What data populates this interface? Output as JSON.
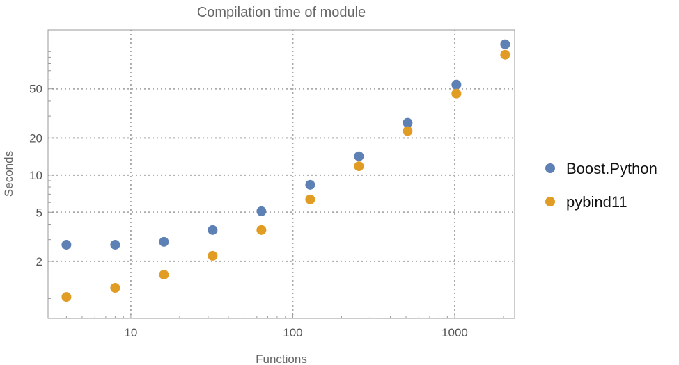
{
  "chart_data": {
    "type": "scatter",
    "title": "Compilation time of module",
    "xlabel": "Functions",
    "ylabel": "Seconds",
    "x_scale": "log",
    "y_scale": "log",
    "xlim": [
      3.08,
      2344
    ],
    "ylim": [
      0.69,
      150
    ],
    "grid": true,
    "legend_position": "right",
    "x_ticks": [
      10,
      100,
      1000
    ],
    "x_tick_labels": [
      "10",
      "100",
      "1000"
    ],
    "y_ticks": [
      2,
      5,
      10,
      20,
      50
    ],
    "y_tick_labels": [
      "2",
      "5",
      "10",
      "20",
      "50"
    ],
    "x": [
      4,
      8,
      16,
      32,
      64,
      128,
      256,
      512,
      1024,
      2048
    ],
    "series": [
      {
        "name": "Boost.Python",
        "color": "#5e81b5",
        "values": [
          2.73,
          2.73,
          2.88,
          3.59,
          5.09,
          8.34,
          14.2,
          26.5,
          54.0,
          114.6
        ]
      },
      {
        "name": "pybind11",
        "color": "#e19c24",
        "values": [
          1.03,
          1.22,
          1.56,
          2.22,
          3.59,
          6.35,
          11.8,
          22.7,
          45.7,
          94.4
        ]
      }
    ]
  }
}
